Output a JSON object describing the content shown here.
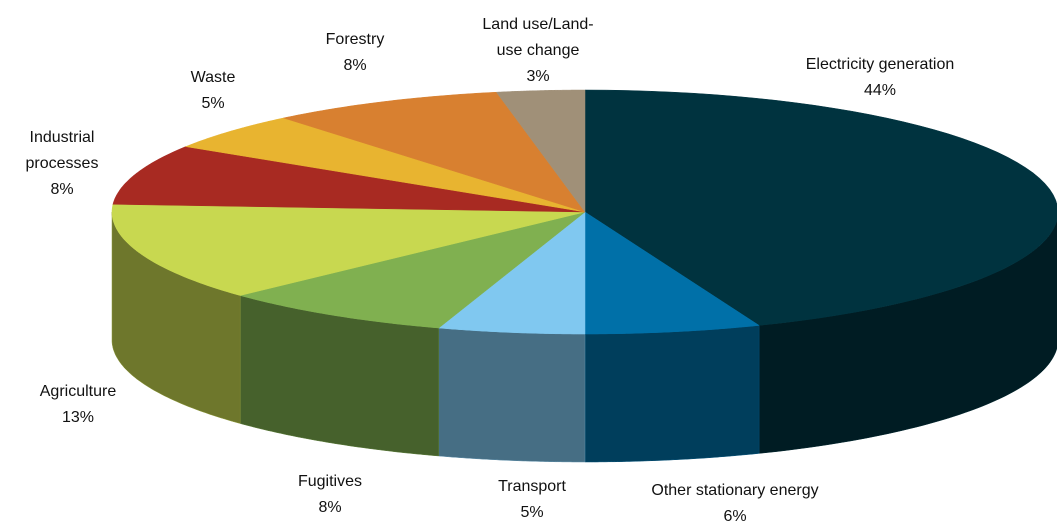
{
  "chart_data": {
    "type": "pie3d",
    "categories": [
      "Electricity generation",
      "Other stationary energy",
      "Transport",
      "Fugitives",
      "Agriculture",
      "Industrial processes",
      "Waste",
      "Forestry",
      "Land use/Land-use change"
    ],
    "values": [
      44,
      6,
      5,
      8,
      13,
      8,
      5,
      8,
      3
    ],
    "value_labels": [
      "44%",
      "6%",
      "5%",
      "8%",
      "13%",
      "8%",
      "5%",
      "8%",
      "3%"
    ],
    "colors": [
      "#00333f",
      "#0070a8",
      "#80c8f0",
      "#80b050",
      "#c8d850",
      "#a82a22",
      "#e8b430",
      "#d88030",
      "#a09078"
    ]
  }
}
